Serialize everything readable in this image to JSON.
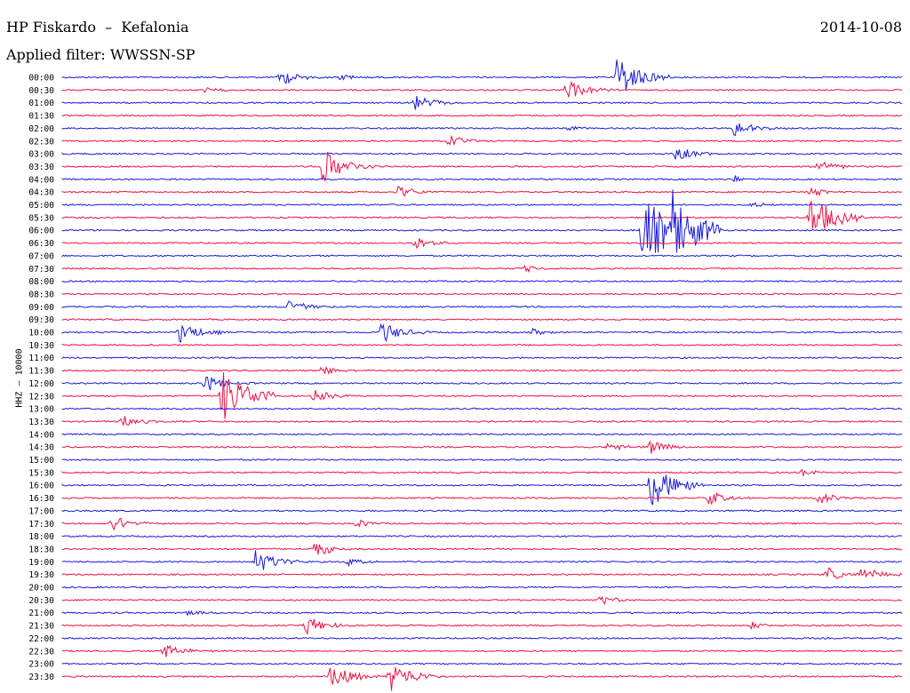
{
  "header": {
    "station": "HP Fiskardo  –  Kefalonia",
    "date": "2014-10-08",
    "filter": "Applied filter: WWSSN-SP",
    "channel_label": "HHZ – 10000"
  },
  "colors": {
    "blue": "#1a1adc",
    "red": "#ee1144"
  },
  "chart_data": {
    "type": "line",
    "title": "HP Fiskardo - Kefalonia",
    "subtitle": "Applied filter: WWSSN-SP",
    "ylabel": "HHZ - 10000",
    "categories": [
      "00:00",
      "00:30",
      "01:00",
      "01:30",
      "02:00",
      "02:30",
      "03:00",
      "03:30",
      "04:00",
      "04:30",
      "05:00",
      "05:30",
      "06:00",
      "06:30",
      "07:00",
      "07:30",
      "08:00",
      "08:30",
      "09:00",
      "09:30",
      "10:00",
      "10:30",
      "11:00",
      "11:30",
      "12:00",
      "12:30",
      "13:00",
      "13:30",
      "14:00",
      "14:30",
      "15:00",
      "15:30",
      "16:00",
      "16:30",
      "17:00",
      "17:30",
      "18:00",
      "18:30",
      "19:00",
      "19:30",
      "20:00",
      "20:30",
      "21:00",
      "21:30",
      "22:00",
      "22:30",
      "23:00",
      "23:30"
    ],
    "series_colors": [
      "blue",
      "red"
    ],
    "events": [
      {
        "row": 0,
        "x": 0.26,
        "amp": 1.0
      },
      {
        "row": 0,
        "x": 0.66,
        "amp": 2.5
      },
      {
        "row": 0,
        "x": 0.33,
        "amp": 0.4
      },
      {
        "row": 1,
        "x": 0.6,
        "amp": 1.2
      },
      {
        "row": 1,
        "x": 0.17,
        "amp": 0.3
      },
      {
        "row": 2,
        "x": 0.42,
        "amp": 1.0
      },
      {
        "row": 4,
        "x": 0.6,
        "amp": 0.4
      },
      {
        "row": 4,
        "x": 0.8,
        "amp": 1.0
      },
      {
        "row": 5,
        "x": 0.46,
        "amp": 0.8
      },
      {
        "row": 6,
        "x": 0.73,
        "amp": 1.0
      },
      {
        "row": 7,
        "x": 0.31,
        "amp": 2.0
      },
      {
        "row": 7,
        "x": 0.9,
        "amp": 0.8
      },
      {
        "row": 8,
        "x": 0.8,
        "amp": 0.4
      },
      {
        "row": 9,
        "x": 0.4,
        "amp": 0.8
      },
      {
        "row": 9,
        "x": 0.89,
        "amp": 0.6
      },
      {
        "row": 10,
        "x": 0.82,
        "amp": 0.3
      },
      {
        "row": 11,
        "x": 0.89,
        "amp": 2.5
      },
      {
        "row": 12,
        "x": 0.69,
        "amp": 4.0
      },
      {
        "row": 12,
        "x": 0.72,
        "amp": 4.0
      },
      {
        "row": 13,
        "x": 0.42,
        "amp": 0.8
      },
      {
        "row": 15,
        "x": 0.55,
        "amp": 0.4
      },
      {
        "row": 18,
        "x": 0.27,
        "amp": 1.0
      },
      {
        "row": 20,
        "x": 0.14,
        "amp": 1.3
      },
      {
        "row": 20,
        "x": 0.38,
        "amp": 1.3
      },
      {
        "row": 20,
        "x": 0.56,
        "amp": 0.4
      },
      {
        "row": 23,
        "x": 0.31,
        "amp": 0.6
      },
      {
        "row": 24,
        "x": 0.17,
        "amp": 1.0
      },
      {
        "row": 25,
        "x": 0.19,
        "amp": 3.0
      },
      {
        "row": 25,
        "x": 0.3,
        "amp": 0.8
      },
      {
        "row": 27,
        "x": 0.07,
        "amp": 0.8
      },
      {
        "row": 29,
        "x": 0.65,
        "amp": 0.6
      },
      {
        "row": 29,
        "x": 0.7,
        "amp": 0.8
      },
      {
        "row": 31,
        "x": 0.88,
        "amp": 0.5
      },
      {
        "row": 32,
        "x": 0.7,
        "amp": 2.5
      },
      {
        "row": 33,
        "x": 0.77,
        "amp": 0.8
      },
      {
        "row": 33,
        "x": 0.9,
        "amp": 0.8
      },
      {
        "row": 35,
        "x": 0.06,
        "amp": 1.0
      },
      {
        "row": 35,
        "x": 0.35,
        "amp": 0.5
      },
      {
        "row": 37,
        "x": 0.3,
        "amp": 1.0
      },
      {
        "row": 38,
        "x": 0.23,
        "amp": 1.5
      },
      {
        "row": 38,
        "x": 0.34,
        "amp": 0.5
      },
      {
        "row": 39,
        "x": 0.91,
        "amp": 0.8
      },
      {
        "row": 39,
        "x": 0.95,
        "amp": 1.0
      },
      {
        "row": 41,
        "x": 0.64,
        "amp": 0.6
      },
      {
        "row": 42,
        "x": 0.15,
        "amp": 0.4
      },
      {
        "row": 43,
        "x": 0.29,
        "amp": 1.2
      },
      {
        "row": 43,
        "x": 0.82,
        "amp": 0.4
      },
      {
        "row": 45,
        "x": 0.12,
        "amp": 1.0
      },
      {
        "row": 47,
        "x": 0.32,
        "amp": 1.5
      },
      {
        "row": 47,
        "x": 0.39,
        "amp": 1.8
      }
    ]
  }
}
